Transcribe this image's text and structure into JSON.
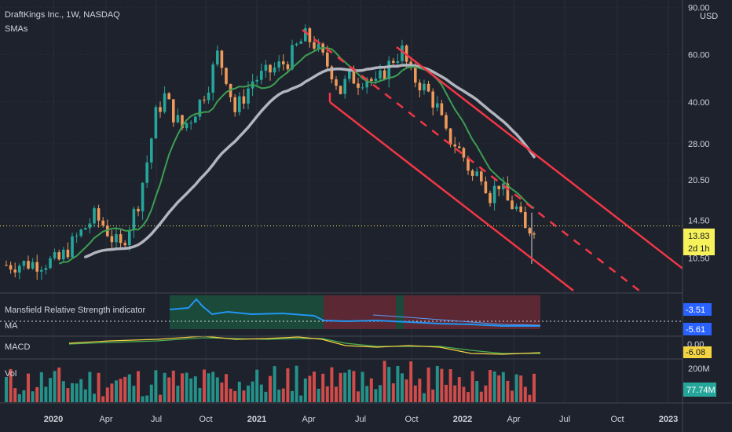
{
  "header": {
    "symbol_title": "DraftKings Inc., 1W, NASDAQ",
    "indicator": "SMAs",
    "currency": "USD"
  },
  "colors": {
    "background": "#1e222d",
    "up": "#26a69a",
    "down": "#ef9a5a",
    "sma_fast": "#3d9e52",
    "sma_slow": "#b2b5be",
    "channel": "#f23645",
    "rs_line": "#2196f3",
    "macd_line": "#f5d442",
    "signal_line": "#4caf50",
    "vol_up": "#26a69a",
    "vol_down": "#ef5350",
    "green_zone": "#1b4a3a",
    "red_zone": "#5c2834"
  },
  "chart_data": [
    {
      "type": "candlestick",
      "title": "DraftKings Inc., 1W, NASDAQ",
      "x_ticks": [
        "2020",
        "Apr",
        "Jul",
        "Oct",
        "2021",
        "Apr",
        "Jul",
        "Oct",
        "2022",
        "Apr",
        "Jul",
        "Oct",
        "2023"
      ],
      "y_ticks": [
        "90.00",
        "60.00",
        "40.00",
        "28.00",
        "20.50",
        "14.50",
        "10.50"
      ],
      "y_scale": "log",
      "ylim": [
        8.5,
        92
      ],
      "series": [
        {
          "name": "SMA fast",
          "type": "line"
        },
        {
          "name": "SMA slow",
          "type": "line"
        }
      ],
      "close_path": [
        [
          0.0,
          9.9
        ],
        [
          1.0,
          10.0
        ],
        [
          2.0,
          10.1
        ],
        [
          3.0,
          10.3
        ],
        [
          4.0,
          12.5
        ],
        [
          5.0,
          15.0
        ],
        [
          5.5,
          14.0
        ],
        [
          6.0,
          12.5
        ],
        [
          6.5,
          11.5
        ],
        [
          7.0,
          14.0
        ],
        [
          7.5,
          17.0
        ],
        [
          8.0,
          24.0
        ],
        [
          8.5,
          36.0
        ],
        [
          9.0,
          42.0
        ],
        [
          9.5,
          36.0
        ],
        [
          10.0,
          32.0
        ],
        [
          10.5,
          35.0
        ],
        [
          11.0,
          40.0
        ],
        [
          11.5,
          47.0
        ],
        [
          12.0,
          60.0
        ],
        [
          12.5,
          50.0
        ],
        [
          13.0,
          37.0
        ],
        [
          13.5,
          42.0
        ],
        [
          14.0,
          48.0
        ],
        [
          15.0,
          52.0
        ],
        [
          16.0,
          57.0
        ],
        [
          16.5,
          64.0
        ],
        [
          17.0,
          70.0
        ],
        [
          17.5,
          66.0
        ],
        [
          18.0,
          58.0
        ],
        [
          18.5,
          52.0
        ],
        [
          19.0,
          44.0
        ],
        [
          19.5,
          50.0
        ],
        [
          20.0,
          48.0
        ],
        [
          20.5,
          50.0
        ],
        [
          21.0,
          46.0
        ],
        [
          21.5,
          52.0
        ],
        [
          22.0,
          58.0
        ],
        [
          22.5,
          62.0
        ],
        [
          23.0,
          50.0
        ],
        [
          23.5,
          47.0
        ],
        [
          24.0,
          43.0
        ],
        [
          24.5,
          38.0
        ],
        [
          25.0,
          30.0
        ],
        [
          25.5,
          28.0
        ],
        [
          26.0,
          25.0
        ],
        [
          26.5,
          21.0
        ],
        [
          27.0,
          22.0
        ],
        [
          27.5,
          18.0
        ],
        [
          28.0,
          20.0
        ],
        [
          28.5,
          17.0
        ],
        [
          29.0,
          16.0
        ],
        [
          29.5,
          13.2
        ],
        [
          30.0,
          13.83
        ]
      ],
      "volume_ylim": [
        0,
        200000000
      ]
    },
    {
      "type": "line",
      "title": "Mansfield Relative Strength indicator",
      "series": [
        {
          "name": "MA"
        }
      ],
      "values": [
        -3.51,
        -5.61
      ]
    },
    {
      "type": "line",
      "title": "MACD",
      "values": [
        0.0,
        -6.08
      ]
    },
    {
      "type": "bar",
      "title": "Vol",
      "volume_ticks": [
        "200M"
      ]
    }
  ],
  "price_tags": {
    "current_price": "13.83",
    "countdown": "2d 1h",
    "rs_value": "-3.51",
    "rs_ma_value": "-5.61",
    "macd_zero": "0.00",
    "macd_value": "-6.08",
    "volume_value": "77.74M",
    "volume_scale": "200M"
  },
  "panes": {
    "rs_title": "Mansfield Relative Strength indicator",
    "rs_ma_title": "MA",
    "macd_title": "MACD",
    "vol_title": "Vol"
  }
}
